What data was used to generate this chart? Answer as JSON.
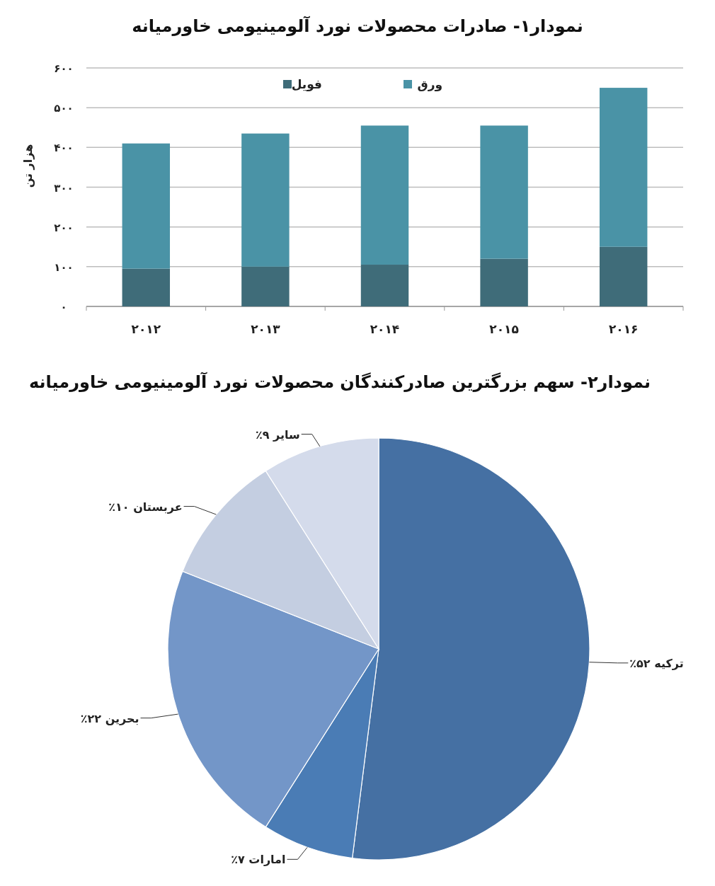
{
  "chart_data": [
    {
      "type": "bar",
      "title": "نمودار۱- صادرات محصولات نورد آلومینیومی خاورمیانه",
      "ylabel": "هزار تن",
      "categories": [
        "۲۰۱۲",
        "۲۰۱۳",
        "۲۰۱۴",
        "۲۰۱۵",
        "۲۰۱۶"
      ],
      "stacked": true,
      "series": [
        {
          "name": "فویل",
          "color": "#3f6c79",
          "values": [
            95,
            100,
            105,
            120,
            150
          ]
        },
        {
          "name": "ورق",
          "color": "#4a93a6",
          "values": [
            315,
            335,
            350,
            335,
            400
          ]
        }
      ],
      "ylim": [
        0,
        600
      ],
      "yticks": [
        {
          "value": 0,
          "label": "۰"
        },
        {
          "value": 100,
          "label": "۱۰۰"
        },
        {
          "value": 200,
          "label": "۲۰۰"
        },
        {
          "value": 300,
          "label": "۳۰۰"
        },
        {
          "value": 400,
          "label": "۴۰۰"
        },
        {
          "value": 500,
          "label": "۵۰۰"
        },
        {
          "value": 600,
          "label": "۶۰۰"
        }
      ],
      "grid": "y",
      "legend": "top"
    },
    {
      "type": "pie",
      "title": "نمودار۲- سهم بزرگترین صادرکنندگان محصولات نورد آلومینیومی خاورمیانه",
      "categories": [
        "ترکیه",
        "امارات",
        "بحرین",
        "عربستان",
        "سایر"
      ],
      "values": [
        52,
        7,
        22,
        10,
        9
      ],
      "value_labels": [
        "۵۲٪",
        "۷٪",
        "۲۲٪",
        "۱۰٪",
        "۹٪"
      ],
      "colors": [
        "#4570a3",
        "#4a7cb5",
        "#7396c8",
        "#c4cee1",
        "#d4dbeb"
      ]
    }
  ]
}
